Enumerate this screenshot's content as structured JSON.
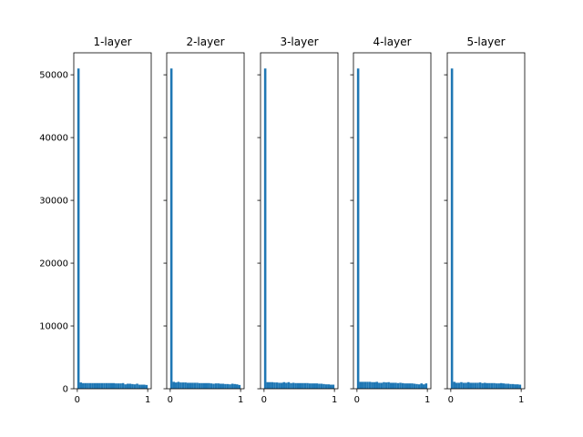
{
  "chart_data": {
    "type": "bar",
    "description_kind": "histogram",
    "bar_color": "#1f77b4",
    "shared_ylim": [
      0,
      53500
    ],
    "y_ticks": [
      0,
      10000,
      20000,
      30000,
      40000,
      50000
    ],
    "x_ticks": [
      0,
      1
    ],
    "xlim": [
      -0.05,
      1.05
    ],
    "bin_width": 0.0333,
    "grid": false,
    "panels": [
      {
        "title": "1-layer",
        "bins": [
          {
            "x": 0.0,
            "count": 51000
          },
          {
            "x": 0.0333,
            "count": 1000
          },
          {
            "x": 0.0667,
            "count": 900
          },
          {
            "x": 0.1,
            "count": 900
          },
          {
            "x": 0.1333,
            "count": 900
          },
          {
            "x": 0.1667,
            "count": 900
          },
          {
            "x": 0.2,
            "count": 900
          },
          {
            "x": 0.2333,
            "count": 900
          },
          {
            "x": 0.2667,
            "count": 900
          },
          {
            "x": 0.3,
            "count": 900
          },
          {
            "x": 0.3333,
            "count": 900
          },
          {
            "x": 0.3667,
            "count": 900
          },
          {
            "x": 0.4,
            "count": 900
          },
          {
            "x": 0.4333,
            "count": 900
          },
          {
            "x": 0.4667,
            "count": 900
          },
          {
            "x": 0.5,
            "count": 900
          },
          {
            "x": 0.5333,
            "count": 850
          },
          {
            "x": 0.5667,
            "count": 850
          },
          {
            "x": 0.6,
            "count": 850
          },
          {
            "x": 0.6333,
            "count": 900
          },
          {
            "x": 0.6667,
            "count": 700
          },
          {
            "x": 0.7,
            "count": 800
          },
          {
            "x": 0.7333,
            "count": 800
          },
          {
            "x": 0.7667,
            "count": 750
          },
          {
            "x": 0.8,
            "count": 700
          },
          {
            "x": 0.8333,
            "count": 800
          },
          {
            "x": 0.8667,
            "count": 650
          },
          {
            "x": 0.9,
            "count": 650
          },
          {
            "x": 0.9333,
            "count": 650
          },
          {
            "x": 0.9667,
            "count": 600
          }
        ]
      },
      {
        "title": "2-layer",
        "bins": [
          {
            "x": 0.0,
            "count": 51000
          },
          {
            "x": 0.0333,
            "count": 1100
          },
          {
            "x": 0.0667,
            "count": 1000
          },
          {
            "x": 0.1,
            "count": 1100
          },
          {
            "x": 0.1333,
            "count": 1000
          },
          {
            "x": 0.1667,
            "count": 1000
          },
          {
            "x": 0.2,
            "count": 1000
          },
          {
            "x": 0.2333,
            "count": 950
          },
          {
            "x": 0.2667,
            "count": 950
          },
          {
            "x": 0.3,
            "count": 950
          },
          {
            "x": 0.3333,
            "count": 950
          },
          {
            "x": 0.3667,
            "count": 950
          },
          {
            "x": 0.4,
            "count": 900
          },
          {
            "x": 0.4333,
            "count": 900
          },
          {
            "x": 0.4667,
            "count": 900
          },
          {
            "x": 0.5,
            "count": 900
          },
          {
            "x": 0.5333,
            "count": 900
          },
          {
            "x": 0.5667,
            "count": 850
          },
          {
            "x": 0.6,
            "count": 800
          },
          {
            "x": 0.6333,
            "count": 850
          },
          {
            "x": 0.6667,
            "count": 850
          },
          {
            "x": 0.7,
            "count": 800
          },
          {
            "x": 0.7333,
            "count": 800
          },
          {
            "x": 0.7667,
            "count": 750
          },
          {
            "x": 0.8,
            "count": 750
          },
          {
            "x": 0.8333,
            "count": 700
          },
          {
            "x": 0.8667,
            "count": 800
          },
          {
            "x": 0.9,
            "count": 750
          },
          {
            "x": 0.9333,
            "count": 700
          },
          {
            "x": 0.9667,
            "count": 600
          }
        ]
      },
      {
        "title": "3-layer",
        "bins": [
          {
            "x": 0.0,
            "count": 51000
          },
          {
            "x": 0.0333,
            "count": 1050
          },
          {
            "x": 0.0667,
            "count": 1050
          },
          {
            "x": 0.1,
            "count": 1050
          },
          {
            "x": 0.1333,
            "count": 1000
          },
          {
            "x": 0.1667,
            "count": 1000
          },
          {
            "x": 0.2,
            "count": 950
          },
          {
            "x": 0.2333,
            "count": 950
          },
          {
            "x": 0.2667,
            "count": 1050
          },
          {
            "x": 0.3,
            "count": 950
          },
          {
            "x": 0.3333,
            "count": 1050
          },
          {
            "x": 0.3667,
            "count": 900
          },
          {
            "x": 0.4,
            "count": 950
          },
          {
            "x": 0.4333,
            "count": 900
          },
          {
            "x": 0.4667,
            "count": 900
          },
          {
            "x": 0.5,
            "count": 900
          },
          {
            "x": 0.5333,
            "count": 900
          },
          {
            "x": 0.5667,
            "count": 900
          },
          {
            "x": 0.6,
            "count": 900
          },
          {
            "x": 0.6333,
            "count": 850
          },
          {
            "x": 0.6667,
            "count": 850
          },
          {
            "x": 0.7,
            "count": 850
          },
          {
            "x": 0.7333,
            "count": 850
          },
          {
            "x": 0.7667,
            "count": 800
          },
          {
            "x": 0.8,
            "count": 800
          },
          {
            "x": 0.8333,
            "count": 750
          },
          {
            "x": 0.8667,
            "count": 700
          },
          {
            "x": 0.9,
            "count": 700
          },
          {
            "x": 0.9333,
            "count": 650
          },
          {
            "x": 0.9667,
            "count": 650
          }
        ]
      },
      {
        "title": "4-layer",
        "bins": [
          {
            "x": 0.0,
            "count": 51000
          },
          {
            "x": 0.0333,
            "count": 1100
          },
          {
            "x": 0.0667,
            "count": 1100
          },
          {
            "x": 0.1,
            "count": 1100
          },
          {
            "x": 0.1333,
            "count": 1100
          },
          {
            "x": 0.1667,
            "count": 1100
          },
          {
            "x": 0.2,
            "count": 1050
          },
          {
            "x": 0.2333,
            "count": 1050
          },
          {
            "x": 0.2667,
            "count": 1100
          },
          {
            "x": 0.3,
            "count": 950
          },
          {
            "x": 0.3333,
            "count": 950
          },
          {
            "x": 0.3667,
            "count": 1050
          },
          {
            "x": 0.4,
            "count": 1000
          },
          {
            "x": 0.4333,
            "count": 1050
          },
          {
            "x": 0.4667,
            "count": 950
          },
          {
            "x": 0.5,
            "count": 950
          },
          {
            "x": 0.5333,
            "count": 950
          },
          {
            "x": 0.5667,
            "count": 900
          },
          {
            "x": 0.6,
            "count": 950
          },
          {
            "x": 0.6333,
            "count": 900
          },
          {
            "x": 0.6667,
            "count": 850
          },
          {
            "x": 0.7,
            "count": 850
          },
          {
            "x": 0.7333,
            "count": 850
          },
          {
            "x": 0.7667,
            "count": 850
          },
          {
            "x": 0.8,
            "count": 800
          },
          {
            "x": 0.8333,
            "count": 750
          },
          {
            "x": 0.8667,
            "count": 700
          },
          {
            "x": 0.9,
            "count": 850
          },
          {
            "x": 0.9333,
            "count": 700
          },
          {
            "x": 0.9667,
            "count": 850
          }
        ]
      },
      {
        "title": "5-layer",
        "bins": [
          {
            "x": 0.0,
            "count": 51000
          },
          {
            "x": 0.0333,
            "count": 1100
          },
          {
            "x": 0.0667,
            "count": 950
          },
          {
            "x": 0.1,
            "count": 950
          },
          {
            "x": 0.1333,
            "count": 1050
          },
          {
            "x": 0.1667,
            "count": 950
          },
          {
            "x": 0.2,
            "count": 950
          },
          {
            "x": 0.2333,
            "count": 1050
          },
          {
            "x": 0.2667,
            "count": 950
          },
          {
            "x": 0.3,
            "count": 950
          },
          {
            "x": 0.3333,
            "count": 950
          },
          {
            "x": 0.3667,
            "count": 950
          },
          {
            "x": 0.4,
            "count": 1000
          },
          {
            "x": 0.4333,
            "count": 900
          },
          {
            "x": 0.4667,
            "count": 950
          },
          {
            "x": 0.5,
            "count": 900
          },
          {
            "x": 0.5333,
            "count": 900
          },
          {
            "x": 0.5667,
            "count": 900
          },
          {
            "x": 0.6,
            "count": 900
          },
          {
            "x": 0.6333,
            "count": 850
          },
          {
            "x": 0.6667,
            "count": 850
          },
          {
            "x": 0.7,
            "count": 900
          },
          {
            "x": 0.7333,
            "count": 850
          },
          {
            "x": 0.7667,
            "count": 800
          },
          {
            "x": 0.8,
            "count": 800
          },
          {
            "x": 0.8333,
            "count": 750
          },
          {
            "x": 0.8667,
            "count": 750
          },
          {
            "x": 0.9,
            "count": 700
          },
          {
            "x": 0.9333,
            "count": 700
          },
          {
            "x": 0.9667,
            "count": 650
          }
        ]
      }
    ]
  }
}
